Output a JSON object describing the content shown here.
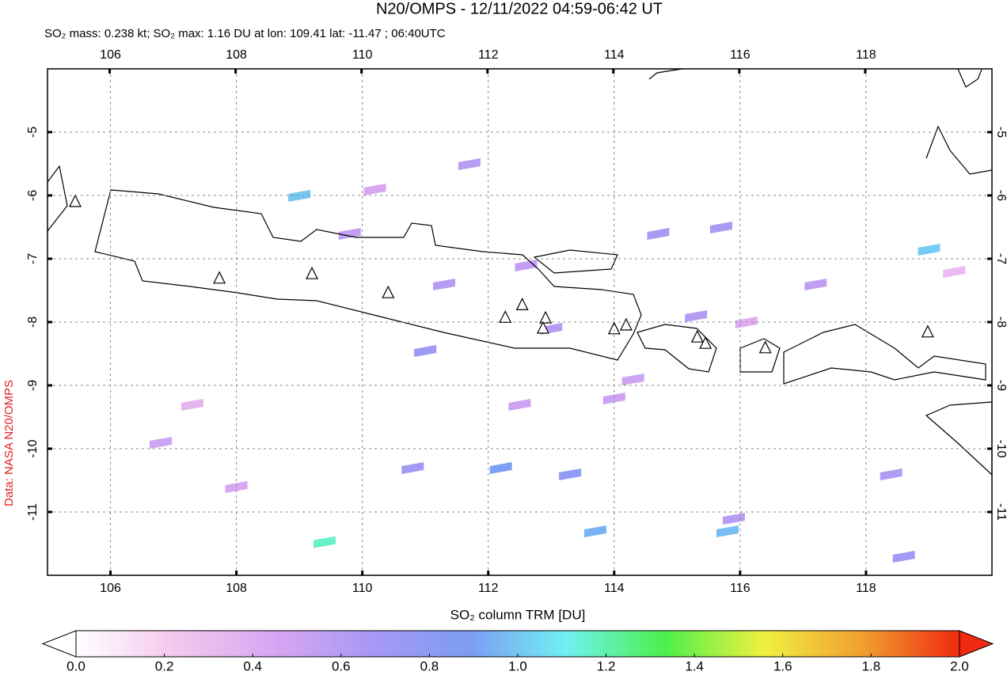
{
  "chart_data": {
    "type": "map",
    "title": "N20/OMPS - 12/11/2022 04:59-06:42 UT",
    "subtitle": "SO₂ mass: 0.238 kt; SO₂ max: 1.16 DU at lon: 109.41 lat: -11.47 ; 06:40UTC",
    "source": "Data: NASA N20/OMPS",
    "colorbar_label": "SO₂ column TRM [DU]",
    "xlim": [
      105,
      120
    ],
    "ylim": [
      -12,
      -4
    ],
    "xticks": [
      106,
      108,
      110,
      112,
      114,
      116,
      118
    ],
    "yticks": [
      -5,
      -6,
      -7,
      -8,
      -9,
      -10,
      -11
    ],
    "grid": true,
    "clim": [
      0,
      2
    ],
    "cticks": [
      {
        "value": 0,
        "label": "0.0"
      },
      0.2,
      0.4,
      0.6,
      0.8,
      {
        "value": 1,
        "label": "1.0"
      },
      1.2,
      1.4,
      1.6,
      1.8,
      {
        "value": 2,
        "label": "2.0"
      }
    ],
    "colormap": [
      "#ffffff",
      "#f4c8ee",
      "#d9a6f2",
      "#a898f4",
      "#7c9cf4",
      "#70f0f0",
      "#4cf04c",
      "#f0f040",
      "#f0a030",
      "#f02a10"
    ],
    "pixels": {
      "lon": [
        109.0,
        109.4,
        119.0,
        115.8,
        112.2,
        113.3,
        111.0,
        114.7,
        115.3,
        110.8,
        111.3,
        112.6,
        113.0,
        114.3,
        106.8,
        108.0,
        109.8,
        112.5,
        113.7,
        115.9,
        117.2,
        118.4,
        119.4,
        110.2,
        111.7,
        115.7,
        116.1,
        107.3,
        114.0,
        118.6
      ],
      "lat": [
        -6.0,
        -11.47,
        -6.85,
        -11.3,
        -10.3,
        -10.4,
        -8.45,
        -6.6,
        -7.9,
        -10.3,
        -7.4,
        -7.1,
        -8.1,
        -8.9,
        -9.9,
        -10.6,
        -6.6,
        -9.3,
        -11.3,
        -11.1,
        -7.4,
        -10.4,
        -7.2,
        -5.9,
        -5.5,
        -6.5,
        -8.0,
        -9.3,
        -9.2,
        -11.7
      ],
      "values": [
        1.0,
        1.16,
        1.02,
        0.98,
        0.9,
        0.78,
        0.72,
        0.65,
        0.6,
        0.7,
        0.6,
        0.55,
        0.6,
        0.5,
        0.5,
        0.45,
        0.55,
        0.5,
        0.95,
        0.6,
        0.55,
        0.62,
        0.3,
        0.45,
        0.6,
        0.65,
        0.4,
        0.35,
        0.5,
        0.7
      ]
    },
    "volcanoes": {
      "lon": [
        105.44,
        107.73,
        109.2,
        110.41,
        112.27,
        112.54,
        112.91,
        112.87,
        114.0,
        114.19,
        115.32,
        115.45,
        116.4,
        118.98
      ],
      "lat": [
        -6.1,
        -7.31,
        -7.24,
        -7.54,
        -7.93,
        -7.73,
        -7.94,
        -8.1,
        -8.11,
        -8.05,
        -8.24,
        -8.34,
        -8.41,
        -8.16
      ]
    }
  }
}
